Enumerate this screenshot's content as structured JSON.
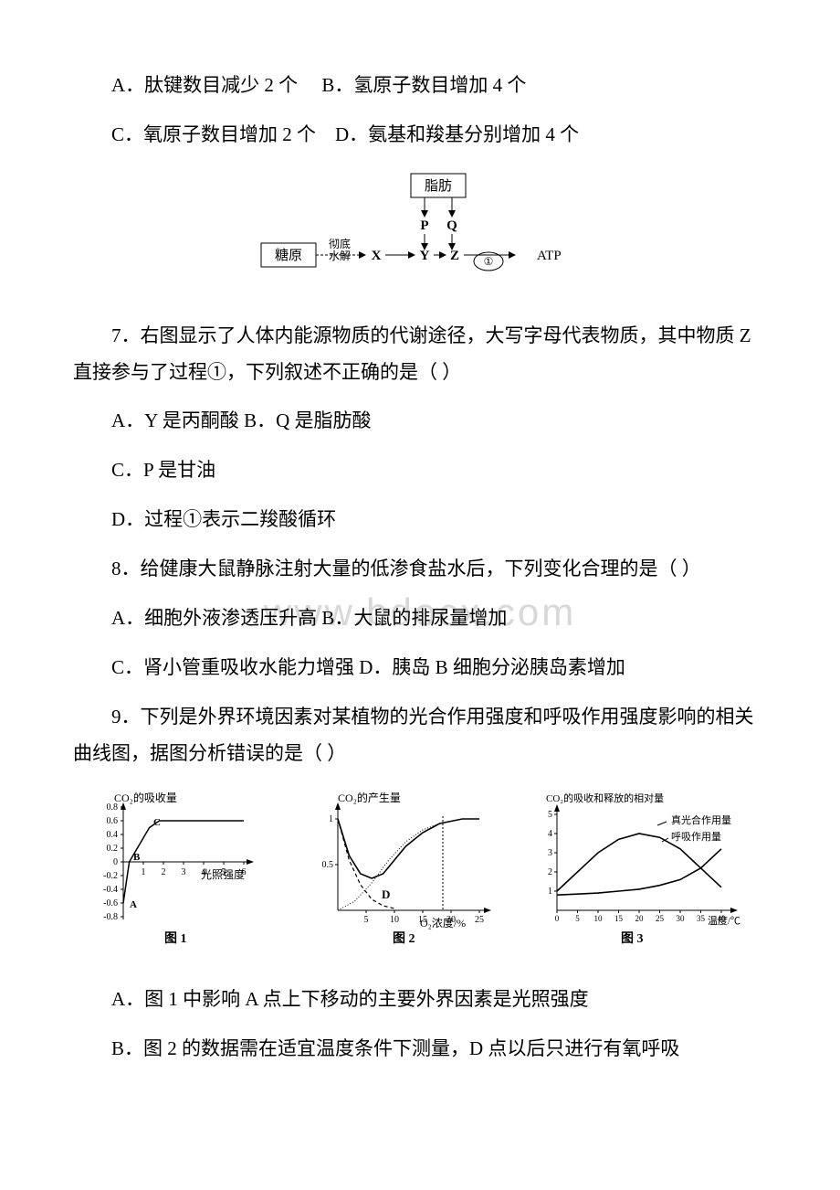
{
  "q6": {
    "optA": "A．肽键数目减少 2 个",
    "optB": "B．氢原子数目增加 4 个",
    "optC": "C．氧原子数目增加 2 个",
    "optD": "D．氨基和羧基分别增加 4 个"
  },
  "diagram1": {
    "boxes": {
      "fat": "脂肪",
      "glycogen": "糖原"
    },
    "labels": {
      "hydrolysis_top": "彻底",
      "hydrolysis_bot": "水解",
      "X": "X",
      "Y": "Y",
      "Z": "Z",
      "P": "P",
      "Q": "Q",
      "ATP": "ATP",
      "circ1": "①"
    },
    "colors": {
      "stroke": "#000000",
      "bg": "#ffffff"
    }
  },
  "q7": {
    "stem": "7．右图显示了人体内能源物质的代谢途径，大写字母代表物质，其中物质 Z 直接参与了过程①，下列叙述不正确的是（ ）",
    "optA": "A．Y 是丙酮酸",
    "optB": "B．Q 是脂肪酸",
    "optC": "C．P 是甘油",
    "optD": "D．过程①表示二羧酸循环"
  },
  "q8": {
    "stem": "8．给健康大鼠静脉注射大量的低渗食盐水后，下列变化合理的是（ ）",
    "optA": "A．细胞外液渗透压升高",
    "optB": "B．大鼠的排尿量增加",
    "optC": "C．肾小管重吸收水能力增强",
    "optD": "D．胰岛 B 细胞分泌胰岛素增加"
  },
  "q9": {
    "stem": "9．下列是外界环境因素对某植物的光合作用强度和呼吸作用强度影响的相关曲线图，据图分析错误的是（ ）",
    "optA": "A．图 1 中影响 A 点上下移动的主要外界因素是光照强度",
    "optB": "B．图 2 的数据需在适宜温度条件下测量，D 点以后只进行有氧呼吸"
  },
  "chart1": {
    "y_label": "CO₂的吸收量",
    "x_label": "光照强度",
    "caption": "图 1",
    "y_ticks": [
      "0.8",
      "0.6",
      "0.4",
      "0.2",
      "0",
      "-0.2",
      "-0.4",
      "-0.6",
      "-0.8"
    ],
    "x_ticks": [
      "1",
      "2",
      "3",
      "4",
      "5",
      "6"
    ],
    "points": {
      "A": "A",
      "B": "B",
      "C": "C"
    },
    "curve": [
      [
        0,
        -0.6
      ],
      [
        0.3,
        0
      ],
      [
        0.7,
        0.2
      ],
      [
        1.3,
        0.5
      ],
      [
        1.8,
        0.6
      ],
      [
        3,
        0.6
      ],
      [
        5,
        0.6
      ],
      [
        6,
        0.6
      ]
    ],
    "colors": {
      "axis": "#000000",
      "curve": "#000000",
      "bg": "#ffffff"
    }
  },
  "chart2": {
    "y_label": "CO₂的产生量",
    "x_label": "O₂浓度/%",
    "caption": "图 2",
    "y_ticks": [
      "1",
      "0.5"
    ],
    "x_ticks": [
      "5",
      "10",
      "15",
      "20",
      "25"
    ],
    "point_D": "D",
    "solid_curve": [
      [
        0,
        1
      ],
      [
        2,
        0.6
      ],
      [
        4,
        0.4
      ],
      [
        6,
        0.35
      ],
      [
        8,
        0.4
      ],
      [
        10,
        0.55
      ],
      [
        12,
        0.7
      ],
      [
        15,
        0.85
      ],
      [
        18,
        0.95
      ],
      [
        22,
        1
      ],
      [
        25,
        1
      ]
    ],
    "dash_curve": [
      [
        0,
        1
      ],
      [
        2,
        0.55
      ],
      [
        4,
        0.28
      ],
      [
        6,
        0.12
      ],
      [
        8,
        0.05
      ],
      [
        10,
        0.02
      ]
    ],
    "dot_curve": [
      [
        0,
        0
      ],
      [
        3,
        0.1
      ],
      [
        6,
        0.3
      ],
      [
        9,
        0.55
      ],
      [
        12,
        0.75
      ],
      [
        15,
        0.88
      ],
      [
        18,
        0.95
      ]
    ],
    "colors": {
      "axis": "#000000",
      "solid": "#000000",
      "dash": "#000000",
      "dot": "#000000",
      "bg": "#ffffff"
    }
  },
  "chart3": {
    "y_label": "CO₂的吸收和释放的相对量",
    "x_label": "温度/℃",
    "caption": "图 3",
    "series1_label": "真光合作用量",
    "series2_label": "呼吸作用量",
    "y_ticks": [
      "1",
      "2",
      "3",
      "4",
      "5"
    ],
    "x_ticks": [
      "0",
      "5",
      "10",
      "15",
      "20",
      "25",
      "30",
      "35",
      "40"
    ],
    "curve1": [
      [
        0,
        1
      ],
      [
        5,
        2
      ],
      [
        10,
        3
      ],
      [
        15,
        3.7
      ],
      [
        20,
        4
      ],
      [
        25,
        3.8
      ],
      [
        30,
        3.2
      ],
      [
        35,
        2.2
      ],
      [
        40,
        1.2
      ]
    ],
    "curve2": [
      [
        0,
        0.8
      ],
      [
        5,
        0.85
      ],
      [
        10,
        0.9
      ],
      [
        15,
        1
      ],
      [
        20,
        1.1
      ],
      [
        25,
        1.3
      ],
      [
        30,
        1.6
      ],
      [
        35,
        2.2
      ],
      [
        40,
        3.2
      ]
    ],
    "colors": {
      "axis": "#000000",
      "curve": "#000000",
      "bg": "#ffffff"
    }
  },
  "watermark": "www.bdocx.com"
}
